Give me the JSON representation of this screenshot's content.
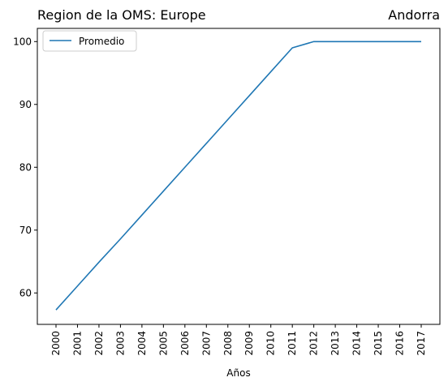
{
  "chart_data": {
    "type": "line",
    "title_left": "Region de la OMS: Europe",
    "title_right": "Andorra",
    "xlabel": "Años",
    "ylabel": "",
    "categories": [
      "2000",
      "2001",
      "2002",
      "2003",
      "2004",
      "2005",
      "2006",
      "2007",
      "2008",
      "2009",
      "2010",
      "2011",
      "2012",
      "2013",
      "2014",
      "2015",
      "2016",
      "2017"
    ],
    "series": [
      {
        "name": "Promedio",
        "color": "#1f77b4",
        "values": [
          57.3,
          61.1,
          64.9,
          68.6,
          72.4,
          76.2,
          80.0,
          83.8,
          87.6,
          91.4,
          95.2,
          99.0,
          100,
          100,
          100,
          100,
          100,
          100
        ]
      }
    ],
    "ylim": [
      55.0,
      102.1
    ],
    "yticks": [
      60,
      70,
      80,
      90,
      100
    ],
    "grid": false,
    "legend_position": "top-left"
  }
}
